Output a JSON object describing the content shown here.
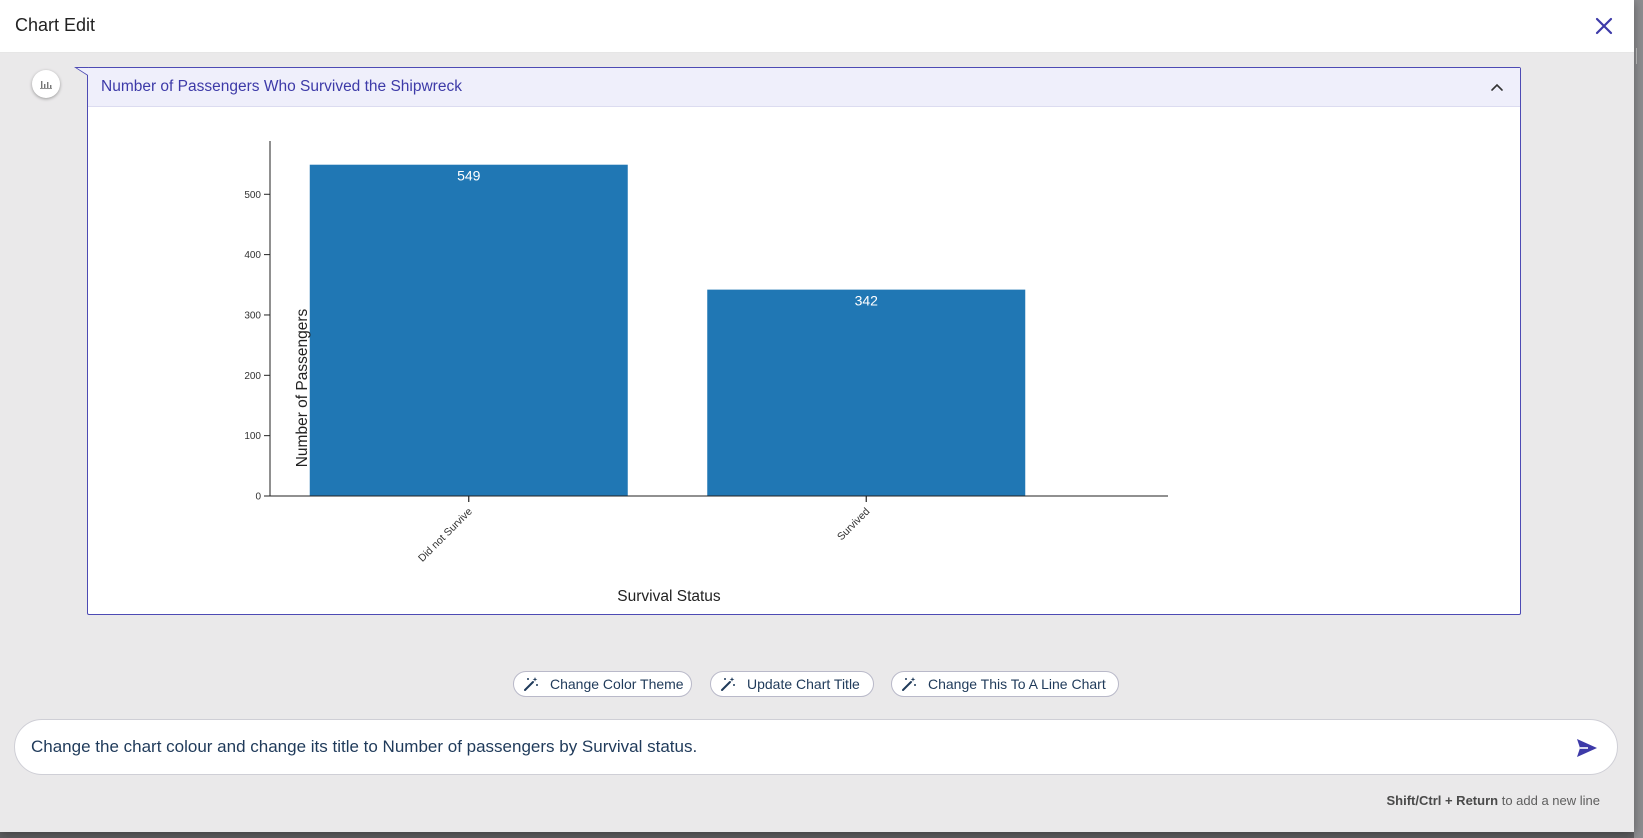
{
  "modal": {
    "title": "Chart Edit"
  },
  "card": {
    "title": "Number of Passengers Who Survived the Shipwreck"
  },
  "chart_data": {
    "type": "bar",
    "categories": [
      "Did not Survive",
      "Survived"
    ],
    "values": [
      549,
      342
    ],
    "title": "",
    "xlabel": "Survival Status",
    "ylabel": "Number of Passengers",
    "ylim": [
      0,
      580
    ],
    "yticks": [
      0,
      100,
      200,
      300,
      400,
      500
    ],
    "bar_color": "#2077b4",
    "data_labels": true,
    "grid": false
  },
  "suggestions": [
    {
      "label": "Change Color Theme",
      "icon": "magic-wand-icon"
    },
    {
      "label": "Update Chart Title",
      "icon": "magic-wand-icon"
    },
    {
      "label": "Change This To A Line Chart",
      "icon": "magic-wand-icon"
    }
  ],
  "prompt_input": {
    "value": "Change the chart colour and change its title to Number of passengers by Survival status."
  },
  "hint": {
    "keys": "Shift/Ctrl + Return",
    "text": "to add a new line"
  },
  "colors": {
    "accent": "#3d3aa8",
    "chip_text": "#1f3a5a",
    "bar": "#2077b4"
  }
}
